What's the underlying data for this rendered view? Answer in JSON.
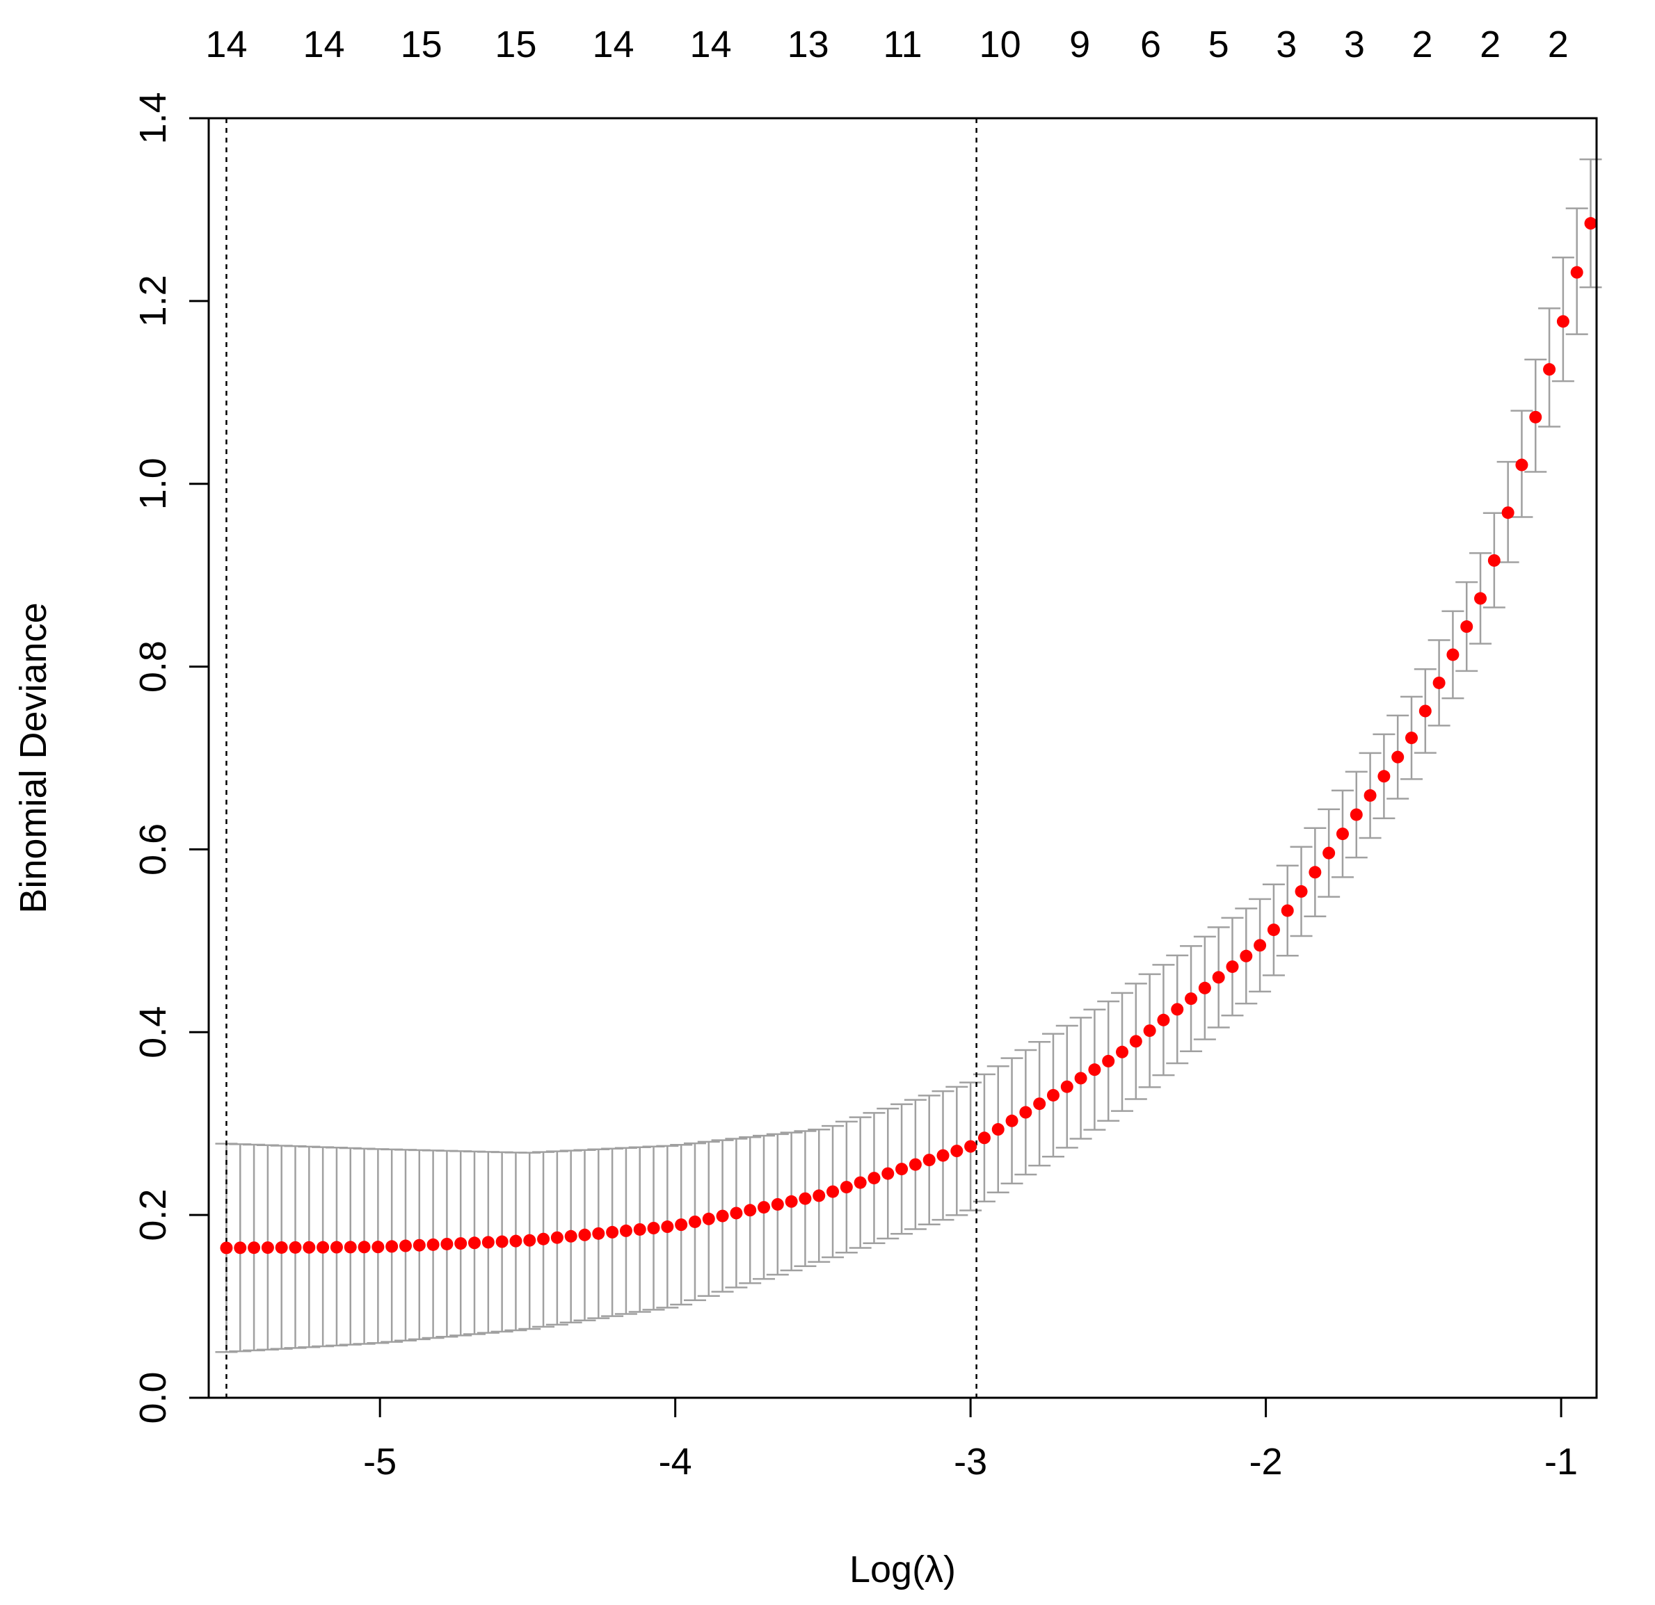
{
  "chart_data": {
    "type": "scatter",
    "xlabel": "Log(λ)",
    "ylabel": "Binomial Deviance",
    "xlim": [
      -5.58,
      -0.88
    ],
    "ylim": [
      0.0,
      1.4
    ],
    "x_ticks": [
      {
        "value": -5,
        "label": "-5"
      },
      {
        "value": -4,
        "label": "-4"
      },
      {
        "value": -3,
        "label": "-3"
      },
      {
        "value": -2,
        "label": "-2"
      },
      {
        "value": -1,
        "label": "-1"
      }
    ],
    "y_ticks": [
      {
        "value": 0.0,
        "label": "0.0"
      },
      {
        "value": 0.2,
        "label": "0.2"
      },
      {
        "value": 0.4,
        "label": "0.4"
      },
      {
        "value": 0.6,
        "label": "0.6"
      },
      {
        "value": 0.8,
        "label": "0.8"
      },
      {
        "value": 1.0,
        "label": "1.0"
      },
      {
        "value": 1.2,
        "label": "1.2"
      },
      {
        "value": 1.4,
        "label": "1.4"
      }
    ],
    "top_labels": [
      {
        "x": -5.52,
        "label": "14"
      },
      {
        "x": -5.19,
        "label": "14"
      },
      {
        "x": -4.86,
        "label": "15"
      },
      {
        "x": -4.54,
        "label": "15"
      },
      {
        "x": -4.21,
        "label": "14"
      },
      {
        "x": -3.88,
        "label": "14"
      },
      {
        "x": -3.55,
        "label": "13"
      },
      {
        "x": -3.23,
        "label": "11"
      },
      {
        "x": -2.9,
        "label": "10"
      },
      {
        "x": -2.63,
        "label": "9"
      },
      {
        "x": -2.39,
        "label": "6"
      },
      {
        "x": -2.16,
        "label": "5"
      },
      {
        "x": -1.93,
        "label": "3"
      },
      {
        "x": -1.7,
        "label": "3"
      },
      {
        "x": -1.47,
        "label": "2"
      },
      {
        "x": -1.24,
        "label": "2"
      },
      {
        "x": -1.01,
        "label": "2"
      }
    ],
    "vlines": [
      -5.52,
      -2.98
    ],
    "grid": false,
    "x_range": [
      -5.52,
      -0.9
    ],
    "n_points": 100,
    "curve": {
      "xs": [
        -5.52,
        -5.0,
        -4.5,
        -4.0,
        -3.5,
        -3.0,
        -2.5,
        -2.0,
        -1.5,
        -1.25,
        -1.0,
        -0.9
      ],
      "ys": [
        0.164,
        0.165,
        0.172,
        0.188,
        0.222,
        0.275,
        0.375,
        0.5,
        0.725,
        0.89,
        1.17,
        1.285
      ]
    },
    "lower_curve": {
      "xs": [
        -5.52,
        -5.0,
        -4.5,
        -4.0,
        -3.5,
        -3.0,
        -2.5,
        -2.0,
        -1.5,
        -1.25,
        -1.0,
        -0.9
      ],
      "ys": [
        0.05,
        0.06,
        0.075,
        0.1,
        0.15,
        0.205,
        0.31,
        0.45,
        0.68,
        0.84,
        1.105,
        1.215
      ]
    },
    "upper_curve": {
      "xs": [
        -5.52,
        -5.0,
        -4.5,
        -4.0,
        -3.5,
        -3.0,
        -2.5,
        -2.0,
        -1.5,
        -1.25,
        -1.0,
        -0.9
      ],
      "ys": [
        0.278,
        0.272,
        0.268,
        0.276,
        0.294,
        0.345,
        0.44,
        0.55,
        0.77,
        0.94,
        1.24,
        1.355
      ]
    },
    "point_color": "#ff0000",
    "errorbar_color": "#a0a0a0",
    "vline_color": "#000000"
  }
}
